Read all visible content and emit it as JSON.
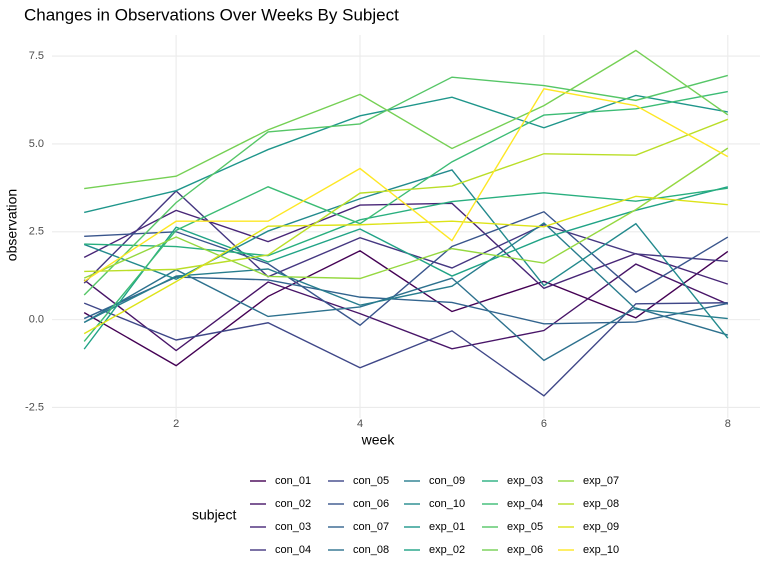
{
  "chart_data": {
    "type": "line",
    "title": "Changes in Observations Over Weeks By Subject",
    "x_label": "week",
    "y_label": "observation",
    "legend_title": "subject",
    "x": [
      1,
      2,
      3,
      4,
      5,
      6,
      7,
      8
    ],
    "xlim": [
      0.65,
      8.35
    ],
    "xticks": [
      2,
      4,
      6,
      8
    ],
    "ylim": [
      -2.8,
      8.1
    ],
    "yticks": [
      -2.5,
      0.0,
      2.5,
      5.0,
      7.5
    ],
    "grid": true,
    "series": [
      {
        "name": "con_01",
        "color": "#440154",
        "values": [
          0.2,
          -1.31,
          0.66,
          1.96,
          0.23,
          1.09,
          0.05,
          1.94
        ]
      },
      {
        "name": "con_02",
        "color": "#481568",
        "values": [
          1.13,
          -0.88,
          1.07,
          0.17,
          -0.83,
          -0.31,
          1.58,
          0.44
        ]
      },
      {
        "name": "con_03",
        "color": "#482677",
        "values": [
          1.77,
          3.11,
          2.22,
          3.26,
          3.31,
          0.89,
          1.88,
          1.01
        ]
      },
      {
        "name": "con_04",
        "color": "#453781",
        "values": [
          1.04,
          3.66,
          1.22,
          2.33,
          1.47,
          2.7,
          1.87,
          1.66
        ]
      },
      {
        "name": "con_05",
        "color": "#3F4788",
        "values": [
          0.47,
          -0.58,
          -0.09,
          -1.37,
          -0.32,
          -2.17,
          0.45,
          0.48
        ]
      },
      {
        "name": "con_06",
        "color": "#39558C",
        "values": [
          2.37,
          2.5,
          1.59,
          -0.16,
          2.08,
          3.07,
          0.78,
          2.35
        ]
      },
      {
        "name": "con_07",
        "color": "#32648E",
        "values": [
          0.03,
          1.21,
          1.13,
          0.64,
          0.49,
          -0.12,
          -0.07,
          0.46
        ]
      },
      {
        "name": "con_08",
        "color": "#2D718E",
        "values": [
          -0.08,
          1.42,
          0.09,
          0.36,
          1.18,
          -1.16,
          0.33,
          -0.44
        ]
      },
      {
        "name": "con_09",
        "color": "#287D8E",
        "values": [
          -0.08,
          1.24,
          1.44,
          0.41,
          0.95,
          2.75,
          0.3,
          0.03
        ]
      },
      {
        "name": "con_10",
        "color": "#238A8D",
        "values": [
          2.14,
          1.15,
          2.52,
          3.44,
          4.26,
          0.97,
          2.73,
          -0.53
        ]
      },
      {
        "name": "exp_01",
        "color": "#1F968B",
        "values": [
          3.05,
          3.67,
          4.84,
          5.8,
          6.33,
          5.46,
          6.38,
          5.91
        ]
      },
      {
        "name": "exp_02",
        "color": "#20A386",
        "values": [
          -0.84,
          2.63,
          1.64,
          2.58,
          1.24,
          2.32,
          3.11,
          3.78
        ]
      },
      {
        "name": "exp_03",
        "color": "#29AF7F",
        "values": [
          2.15,
          2.08,
          1.82,
          2.84,
          3.36,
          3.61,
          3.37,
          3.74
        ]
      },
      {
        "name": "exp_04",
        "color": "#3CBC75",
        "values": [
          -0.62,
          2.54,
          3.78,
          2.73,
          4.49,
          5.82,
          6.0,
          6.49
        ]
      },
      {
        "name": "exp_05",
        "color": "#56C667",
        "values": [
          0.7,
          3.33,
          5.34,
          5.57,
          6.9,
          6.66,
          6.24,
          6.95
        ]
      },
      {
        "name": "exp_06",
        "color": "#75D054",
        "values": [
          3.73,
          4.08,
          5.4,
          6.41,
          4.87,
          6.09,
          7.66,
          5.83
        ]
      },
      {
        "name": "exp_07",
        "color": "#95D840",
        "values": [
          1.18,
          2.35,
          1.23,
          1.17,
          2.02,
          1.61,
          3.13,
          4.88
        ]
      },
      {
        "name": "exp_08",
        "color": "#BADE28",
        "values": [
          1.37,
          1.43,
          1.84,
          3.6,
          3.8,
          4.72,
          4.68,
          5.7
        ]
      },
      {
        "name": "exp_09",
        "color": "#DDE318",
        "values": [
          -0.4,
          1.08,
          2.66,
          2.7,
          2.8,
          2.64,
          3.51,
          3.27
        ]
      },
      {
        "name": "exp_10",
        "color": "#FDE725",
        "values": [
          1.09,
          2.8,
          2.8,
          4.3,
          2.25,
          6.57,
          6.09,
          4.64
        ]
      }
    ]
  }
}
